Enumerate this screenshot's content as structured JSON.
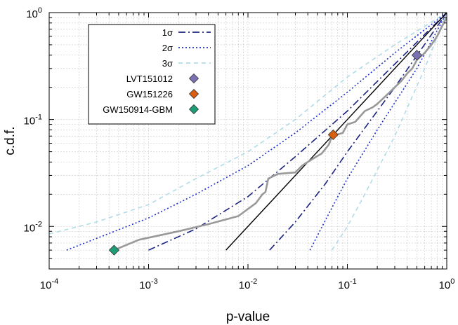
{
  "chart_data": {
    "type": "line",
    "xlabel": "p-value",
    "ylabel": "c.d.f.",
    "x_scale": "log",
    "y_scale": "log",
    "xlim": [
      0.0001,
      1
    ],
    "ylim": [
      0.004,
      1
    ],
    "grid": true,
    "legend_position": "top-left",
    "x_ticks": [
      {
        "base": "10",
        "exp": "-4",
        "value": 0.0001
      },
      {
        "base": "10",
        "exp": "-3",
        "value": 0.001
      },
      {
        "base": "10",
        "exp": "-2",
        "value": 0.01
      },
      {
        "base": "10",
        "exp": "-1",
        "value": 0.1
      },
      {
        "base": "10",
        "exp": "0",
        "value": 1
      }
    ],
    "y_ticks": [
      {
        "base": "10",
        "exp": "-2",
        "value": 0.01
      },
      {
        "base": "10",
        "exp": "-1",
        "value": 0.1
      },
      {
        "base": "10",
        "exp": "0",
        "value": 1
      }
    ],
    "diagonal": {
      "color": "#000000",
      "points": [
        [
          0.006,
          0.006
        ],
        [
          1,
          1
        ]
      ]
    },
    "bands": [
      {
        "name": "1σ",
        "color": "#1a237e",
        "style": "dashdot",
        "upper": [
          [
            0.001,
            0.006
          ],
          [
            0.003,
            0.0095
          ],
          [
            0.01,
            0.019
          ],
          [
            0.03,
            0.045
          ],
          [
            0.1,
            0.12
          ],
          [
            0.3,
            0.33
          ],
          [
            1,
            1
          ]
        ],
        "lower": [
          [
            0.0165,
            0.006
          ],
          [
            0.03,
            0.011
          ],
          [
            0.06,
            0.025
          ],
          [
            0.1,
            0.05
          ],
          [
            0.3,
            0.2
          ],
          [
            1,
            1
          ]
        ]
      },
      {
        "name": "2σ",
        "color": "#1f2fc9",
        "style": "dotted",
        "upper": [
          [
            0.00015,
            0.006
          ],
          [
            0.001,
            0.012
          ],
          [
            0.003,
            0.02
          ],
          [
            0.01,
            0.037
          ],
          [
            0.03,
            0.075
          ],
          [
            0.1,
            0.18
          ],
          [
            0.3,
            0.42
          ],
          [
            1,
            1
          ]
        ],
        "lower": [
          [
            0.042,
            0.006
          ],
          [
            0.07,
            0.015
          ],
          [
            0.1,
            0.028
          ],
          [
            0.2,
            0.08
          ],
          [
            0.5,
            0.3
          ],
          [
            1,
            1
          ]
        ]
      },
      {
        "name": "3σ",
        "color": "#b2dbe8",
        "style": "dashed",
        "upper": [
          [
            0.0001,
            0.0085
          ],
          [
            0.0003,
            0.011
          ],
          [
            0.001,
            0.016
          ],
          [
            0.003,
            0.028
          ],
          [
            0.01,
            0.05
          ],
          [
            0.03,
            0.1
          ],
          [
            0.1,
            0.25
          ],
          [
            0.3,
            0.5
          ],
          [
            1,
            1
          ]
        ],
        "lower": [
          [
            0.07,
            0.006
          ],
          [
            0.1,
            0.01
          ],
          [
            0.15,
            0.02
          ],
          [
            0.3,
            0.07
          ],
          [
            0.6,
            0.3
          ],
          [
            1,
            1
          ]
        ]
      }
    ],
    "observed": {
      "color": "#999999",
      "points": [
        [
          0.00045,
          0.006
        ],
        [
          0.0008,
          0.0075
        ],
        [
          0.002,
          0.009
        ],
        [
          0.004,
          0.0105
        ],
        [
          0.008,
          0.0125
        ],
        [
          0.012,
          0.0165
        ],
        [
          0.014,
          0.02
        ],
        [
          0.015,
          0.021
        ],
        [
          0.016,
          0.028
        ],
        [
          0.02,
          0.031
        ],
        [
          0.03,
          0.032
        ],
        [
          0.035,
          0.037
        ],
        [
          0.045,
          0.043
        ],
        [
          0.055,
          0.048
        ],
        [
          0.065,
          0.058
        ],
        [
          0.07,
          0.07
        ],
        [
          0.09,
          0.075
        ],
        [
          0.1,
          0.09
        ],
        [
          0.12,
          0.095
        ],
        [
          0.15,
          0.12
        ],
        [
          0.18,
          0.13
        ],
        [
          0.2,
          0.14
        ],
        [
          0.25,
          0.17
        ],
        [
          0.3,
          0.2
        ],
        [
          0.35,
          0.23
        ],
        [
          0.4,
          0.27
        ],
        [
          0.45,
          0.3
        ],
        [
          0.5,
          0.36
        ],
        [
          0.6,
          0.42
        ],
        [
          0.7,
          0.5
        ],
        [
          0.8,
          0.6
        ],
        [
          0.9,
          0.75
        ],
        [
          1,
          0.9
        ]
      ]
    },
    "events": [
      {
        "name": "LVT151012",
        "x": 0.5,
        "y": 0.4,
        "color": "#7b72b4"
      },
      {
        "name": "GW151226",
        "x": 0.072,
        "y": 0.072,
        "color": "#d95f0e"
      },
      {
        "name": "GW150914-GBM",
        "x": 0.00045,
        "y": 0.006,
        "color": "#1d9e77"
      }
    ]
  }
}
